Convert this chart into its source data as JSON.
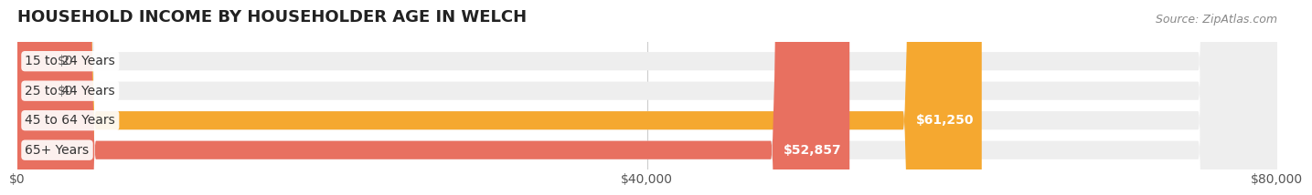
{
  "title": "HOUSEHOLD INCOME BY HOUSEHOLDER AGE IN WELCH",
  "source": "Source: ZipAtlas.com",
  "categories": [
    "15 to 24 Years",
    "25 to 44 Years",
    "45 to 64 Years",
    "65+ Years"
  ],
  "values": [
    0,
    0,
    61250,
    52857
  ],
  "bar_colors": [
    "#a8a8d8",
    "#f0a0b8",
    "#f5a830",
    "#e87060"
  ],
  "bar_bg_color": "#eeeeee",
  "background_color": "#ffffff",
  "xlim": [
    0,
    80000
  ],
  "xticks": [
    0,
    40000,
    80000
  ],
  "xtick_labels": [
    "$0",
    "$40,000",
    "$80,000"
  ],
  "value_labels": [
    "$0",
    "$0",
    "$61,250",
    "$52,857"
  ],
  "title_fontsize": 13,
  "label_fontsize": 10,
  "tick_fontsize": 10
}
